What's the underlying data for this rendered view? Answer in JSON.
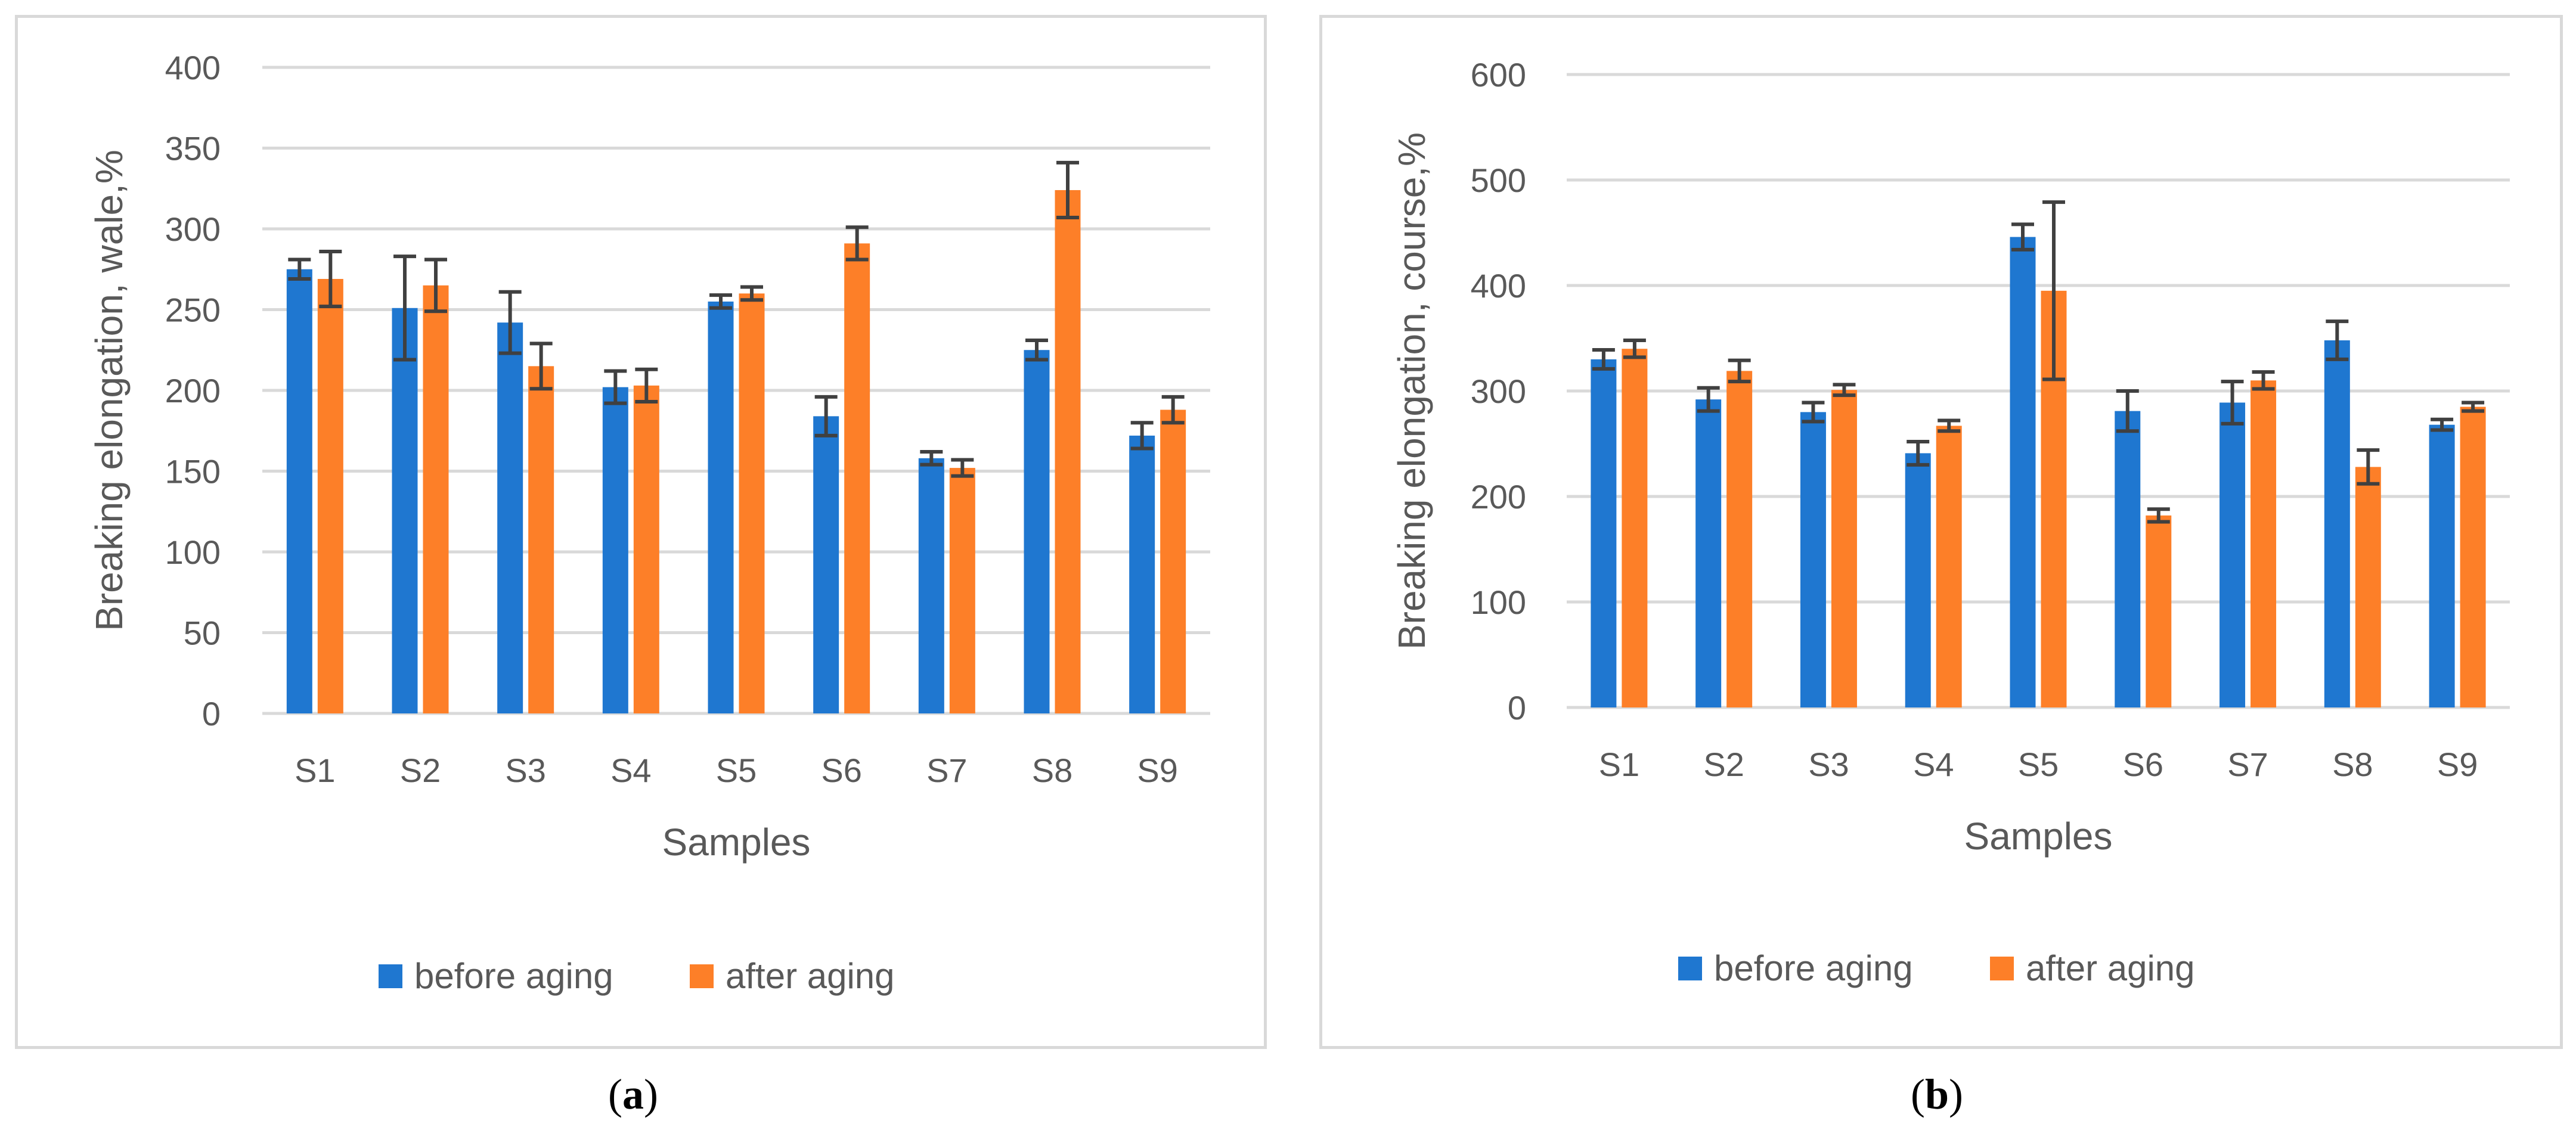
{
  "colors": {
    "before": "#1f77d0",
    "after": "#fd7f28",
    "grid": "#d9d9d9",
    "text": "#595959",
    "error": "#404040"
  },
  "chart_data": [
    {
      "type": "bar",
      "panel": "(a)",
      "categories": [
        "S1",
        "S2",
        "S3",
        "S4",
        "S5",
        "S6",
        "S7",
        "S8",
        "S9"
      ],
      "series": [
        {
          "name": "before aging",
          "values": [
            275,
            251,
            242,
            202,
            255,
            184,
            158,
            225,
            172
          ],
          "errors": [
            6,
            32,
            19,
            10,
            4,
            12,
            4,
            6,
            8
          ]
        },
        {
          "name": "after aging",
          "values": [
            269,
            265,
            215,
            203,
            260,
            291,
            152,
            324,
            188
          ],
          "errors": [
            17,
            16,
            14,
            10,
            4,
            10,
            5,
            17,
            8
          ]
        }
      ],
      "xlabel": "Samples",
      "ylabel": "Breaking elongation, wale,%",
      "ylim": [
        0,
        400
      ],
      "yticks": [
        "0",
        "50",
        "100",
        "150",
        "200",
        "250",
        "300",
        "350",
        "400"
      ],
      "grid": true,
      "legend": "bottom"
    },
    {
      "type": "bar",
      "panel": "(b)",
      "categories": [
        "S1",
        "S2",
        "S3",
        "S4",
        "S5",
        "S6",
        "S7",
        "S8",
        "S9"
      ],
      "series": [
        {
          "name": "before aging",
          "values": [
            330,
            292,
            280,
            241,
            446,
            281,
            289,
            348,
            268
          ],
          "errors": [
            9,
            11,
            9,
            11,
            12,
            19,
            20,
            18,
            5
          ]
        },
        {
          "name": "after aging",
          "values": [
            340,
            319,
            301,
            267,
            395,
            182,
            310,
            228,
            285
          ],
          "errors": [
            8,
            10,
            5,
            5,
            84,
            6,
            8,
            16,
            4
          ]
        }
      ],
      "xlabel": "Samples",
      "ylabel": "Breaking elongation, course,%",
      "ylim": [
        0,
        600
      ],
      "yticks": [
        "0",
        "100",
        "200",
        "300",
        "400",
        "500",
        "600"
      ],
      "grid": true,
      "legend": "bottom"
    }
  ],
  "labels": {
    "a_letter": "a",
    "b_letter": "b"
  }
}
